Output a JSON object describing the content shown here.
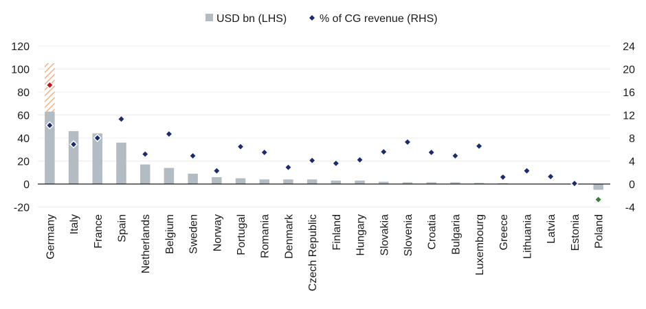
{
  "chart_data": {
    "type": "bar",
    "legend": {
      "placement": "top-center",
      "items": [
        {
          "label": "USD bn (LHS)",
          "marker": "square",
          "color": "#b2bcc2"
        },
        {
          "label": "% of CG revenue (RHS)",
          "marker": "diamond",
          "color": "#1c2b6e"
        }
      ]
    },
    "categories": [
      "Germany",
      "Italy",
      "France",
      "Spain",
      "Netherlands",
      "Belgium",
      "Sweden",
      "Norway",
      "Portugal",
      "Romania",
      "Denmark",
      "Czech Republic",
      "Finland",
      "Hungary",
      "Slovakia",
      "Slovenia",
      "Croatia",
      "Bulgaria",
      "Luxembourg",
      "Greece",
      "Lithuania",
      "Latvia",
      "Estonia",
      "Poland"
    ],
    "y_left": {
      "range": [
        -20,
        120
      ],
      "ticks": [
        -20,
        0,
        20,
        40,
        60,
        80,
        100,
        120
      ]
    },
    "y_right": {
      "range": [
        -4,
        24
      ],
      "ticks": [
        -4,
        0,
        4,
        8,
        12,
        16,
        20,
        24
      ]
    },
    "grid": true,
    "series": [
      {
        "name": "USD bn (LHS)",
        "axis": "left",
        "render": "bar",
        "color": "#b2bcc2",
        "values": [
          63,
          46,
          44,
          36,
          17,
          14,
          9,
          6,
          5,
          4,
          4,
          4,
          3,
          3,
          2,
          1.5,
          1.5,
          1.5,
          1,
          0.7,
          0,
          0,
          0,
          -5
        ]
      },
      {
        "name": "% of CG revenue (RHS)",
        "axis": "right",
        "render": "diamond",
        "color": "#1c2b6e",
        "values": [
          10.2,
          6.9,
          8.0,
          11.3,
          5.2,
          8.7,
          4.9,
          2.3,
          6.5,
          5.5,
          2.9,
          4.1,
          3.6,
          4.2,
          5.6,
          7.3,
          5.5,
          4.9,
          6.6,
          1.2,
          2.3,
          1.3,
          0.1,
          -2.7
        ]
      }
    ],
    "highlights": {
      "extra_bar": {
        "category": "Germany",
        "from": 63,
        "to": 105,
        "pattern": "hatched",
        "color": "#f4b183"
      },
      "extra_marker": {
        "category": "Germany",
        "value": 17.2,
        "color": "#c0161f"
      },
      "marker_color_overrides": [
        {
          "category": "Poland",
          "color": "#3b7d3e"
        }
      ]
    }
  }
}
